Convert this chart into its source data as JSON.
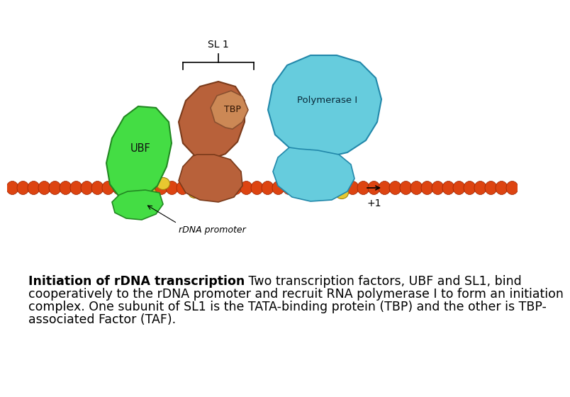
{
  "background_color": "#ffffff",
  "bold_text": "Initiation of rDNA transcription",
  "line1_normal": " Two transcription factors, UBF and SL1, bind",
  "line2": "cooperatively to the rDNA promoter and recruit RNA polymerase I to form an initiation",
  "line3": "complex. One subunit of SL1 is the TATA-binding protein (TBP) and the other is TBP-",
  "line4": "associated Factor (TAF).",
  "font_size": 12.5,
  "ubf_color": "#44dd44",
  "ubf_edge": "#228822",
  "sl1_body_color": "#b8613a",
  "sl1_edge": "#7a3a1a",
  "polymerase_color": "#66ccdd",
  "polymerase_edge": "#2288aa",
  "dna_color": "#dd4411",
  "dna_edge": "#992200",
  "yellow_color": "#e8c830",
  "yellow_edge": "#a08010",
  "tbp_color": "#cc8855",
  "tbp_edge": "#8a5030",
  "ubf_label": "UBF",
  "tbp_label": "TBP",
  "polymerase_label": "Polymerase I",
  "sl1_label": "SL 1",
  "promoter_label": "rDNA promoter",
  "plus1_label": "+1"
}
